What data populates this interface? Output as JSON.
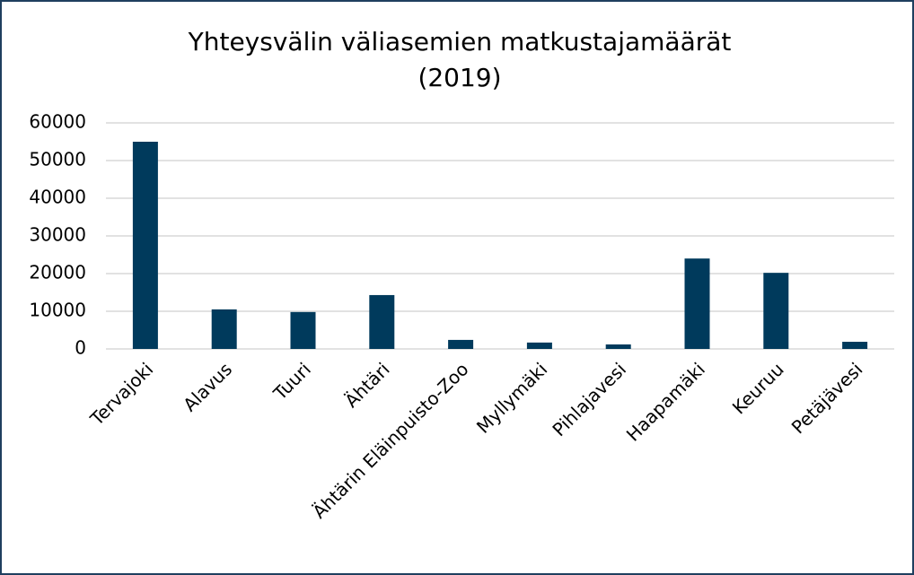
{
  "chart_data": {
    "type": "bar",
    "title": [
      "Yhteysvälin väliasemien matkustajamäärät",
      "(2019)"
    ],
    "categories": [
      "Tervajoki",
      "Alavus",
      "Tuuri",
      "Ähtäri",
      "Ähtärin Eläinpuisto-Zoo",
      "Myllymäki",
      "Pihlajavesi",
      "Haapamäki",
      "Keuruu",
      "Petäjävesi"
    ],
    "values": [
      55000,
      10500,
      9800,
      14300,
      2400,
      1700,
      1200,
      24000,
      20200,
      1900
    ],
    "color": "#003a5c",
    "ylim": [
      0,
      60000
    ],
    "yticks": [
      0,
      10000,
      20000,
      30000,
      40000,
      50000,
      60000
    ],
    "grid": true
  }
}
